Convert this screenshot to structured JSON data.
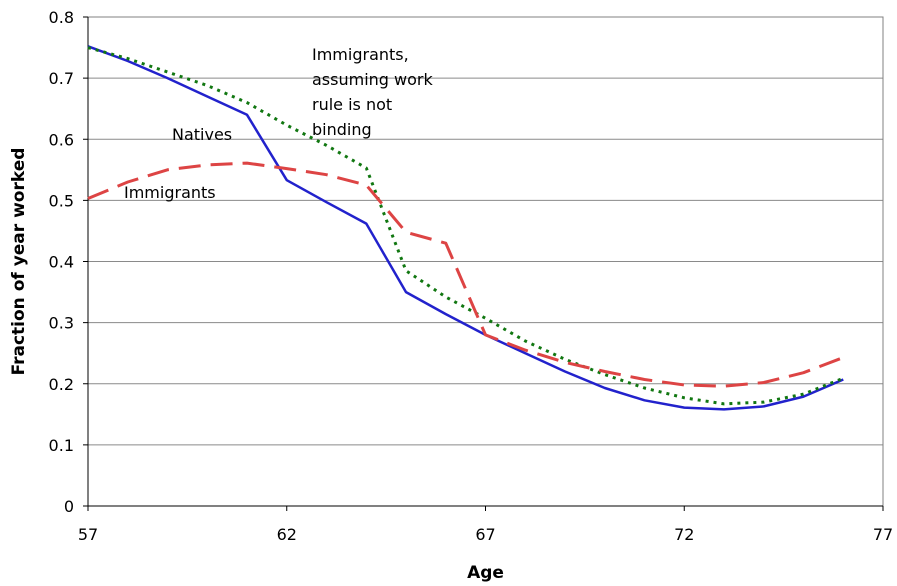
{
  "chart_data": {
    "type": "line",
    "title": "",
    "xlabel": "Age",
    "ylabel": "Fraction of year worked",
    "xlim": [
      57,
      77
    ],
    "ylim": [
      0,
      0.8
    ],
    "xticks": [
      57,
      62,
      67,
      72,
      77
    ],
    "yticks": [
      0,
      0.1,
      0.2,
      0.3,
      0.4,
      0.5,
      0.6,
      0.7,
      0.8
    ],
    "ytick_labels": [
      "0",
      "0.1",
      "0.2",
      "0.3",
      "0.4",
      "0.5",
      "0.6",
      "0.7",
      "0.8"
    ],
    "grid": "horizontal",
    "series": [
      {
        "name": "Natives",
        "color": "#2222cc",
        "style": "solid",
        "x": [
          57,
          58,
          59,
          60,
          61,
          62,
          63,
          64,
          65,
          66,
          67,
          68,
          69,
          70,
          71,
          72,
          73,
          74,
          75,
          76
        ],
        "y": [
          0.752,
          0.728,
          0.7,
          0.67,
          0.64,
          0.533,
          0.497,
          0.462,
          0.35,
          0.314,
          0.28,
          0.25,
          0.22,
          0.193,
          0.173,
          0.161,
          0.158,
          0.163,
          0.179,
          0.207
        ]
      },
      {
        "name": "Immigrants, assuming work rule is not binding",
        "color": "#117711",
        "style": "dotted",
        "x": [
          57,
          58,
          59,
          60,
          61,
          62,
          63,
          64,
          65,
          66,
          67,
          68,
          69,
          70,
          71,
          72,
          73,
          74,
          75,
          76
        ],
        "y": [
          0.75,
          0.732,
          0.71,
          0.688,
          0.66,
          0.623,
          0.59,
          0.553,
          0.385,
          0.342,
          0.307,
          0.27,
          0.24,
          0.215,
          0.193,
          0.177,
          0.167,
          0.17,
          0.183,
          0.209
        ]
      },
      {
        "name": "Immigrants",
        "color": "#dd4444",
        "style": "dashed",
        "x": [
          57,
          58,
          59,
          60,
          61,
          62,
          63,
          64,
          65,
          66,
          67,
          68,
          69,
          70,
          71,
          72,
          73,
          74,
          75,
          76
        ],
        "y": [
          0.503,
          0.53,
          0.55,
          0.558,
          0.561,
          0.552,
          0.542,
          0.525,
          0.448,
          0.43,
          0.28,
          0.255,
          0.235,
          0.22,
          0.207,
          0.198,
          0.196,
          0.202,
          0.218,
          0.243
        ]
      }
    ],
    "annotations": [
      {
        "lines": [
          "Immigrants,",
          "assuming work",
          "rule is not",
          "binding"
        ]
      },
      {
        "lines": [
          "Natives"
        ]
      },
      {
        "lines": [
          "Immigrants"
        ]
      }
    ]
  }
}
